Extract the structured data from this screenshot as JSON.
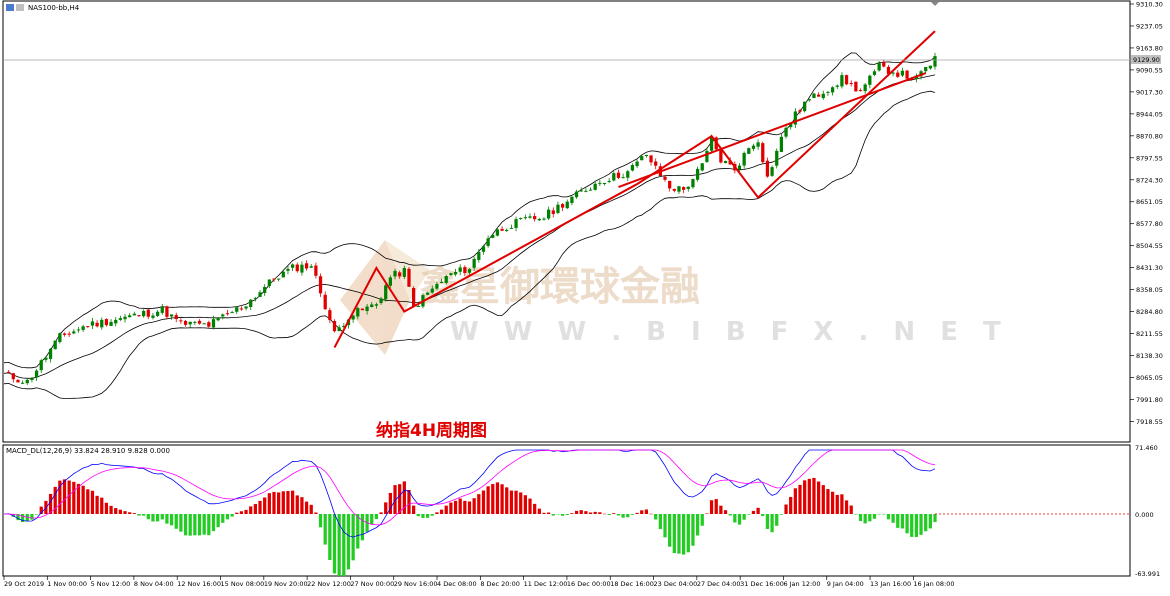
{
  "symbol_label": "NAS100-bb,H4",
  "chart_title": "纳指4H周期图",
  "price_marker": "9129.90",
  "macd_label": "MACD_DL(12,26,9) 33.824 28.910 9.828 0.000",
  "watermark": {
    "cn": "鑫星御環球金融",
    "en": "W W W . B I B F X . N E T"
  },
  "colors": {
    "bull": "#008000",
    "bear": "#e00000",
    "trend": "#e00000",
    "macd_line": "#0000ff",
    "signal_line": "#ff00ff"
  },
  "chart_data": [
    {
      "type": "candlestick",
      "y_axis_ticks": [
        "9310.30",
        "9237.05",
        "9163.80",
        "9090.55",
        "9017.30",
        "8944.05",
        "8870.80",
        "8797.55",
        "8724.30",
        "8651.05",
        "8577.80",
        "8504.55",
        "8431.30",
        "8358.05",
        "8284.80",
        "8211.55",
        "8138.30",
        "8065.05",
        "7991.80",
        "7918.55"
      ],
      "ylim": [
        7900,
        9310.3
      ],
      "x_ticks": [
        "29 Oct 2019",
        "1 Nov 00:00",
        "5 Nov 12:00",
        "8 Nov 04:00",
        "12 Nov 16:00",
        "15 Nov 08:00",
        "19 Nov 20:00",
        "22 Nov 12:00",
        "27 Nov 00:00",
        "29 Nov 16:00",
        "4 Dec 08:00",
        "8 Dec 20:00",
        "11 Dec 12:00",
        "16 Dec 00:00",
        "18 Dec 16:00",
        "23 Dec 04:00",
        "27 Dec 04:00",
        "31 Dec 16:00",
        "6 Jan 12:00",
        "9 Jan 04:00",
        "13 Jan 16:00",
        "16 Jan 08:00"
      ],
      "close_path": [
        [
          0,
          8075
        ],
        [
          5,
          8050
        ],
        [
          12,
          8200
        ],
        [
          18,
          8240
        ],
        [
          26,
          8265
        ],
        [
          34,
          8290
        ],
        [
          38,
          8245
        ],
        [
          44,
          8240
        ],
        [
          52,
          8310
        ],
        [
          58,
          8395
        ],
        [
          62,
          8430
        ],
        [
          66,
          8440
        ],
        [
          69,
          8305
        ],
        [
          71,
          8210
        ],
        [
          74,
          8270
        ],
        [
          80,
          8310
        ],
        [
          83,
          8400
        ],
        [
          86,
          8420
        ],
        [
          88,
          8300
        ],
        [
          92,
          8360
        ],
        [
          96,
          8410
        ],
        [
          100,
          8430
        ],
        [
          104,
          8535
        ],
        [
          108,
          8570
        ],
        [
          112,
          8590
        ],
        [
          116,
          8600
        ],
        [
          120,
          8645
        ],
        [
          128,
          8720
        ],
        [
          134,
          8750
        ],
        [
          138,
          8810
        ],
        [
          140,
          8760
        ],
        [
          143,
          8700
        ],
        [
          146,
          8690
        ],
        [
          150,
          8770
        ],
        [
          152,
          8860
        ],
        [
          154,
          8790
        ],
        [
          157,
          8760
        ],
        [
          160,
          8830
        ],
        [
          162,
          8860
        ],
        [
          164,
          8730
        ],
        [
          166,
          8820
        ],
        [
          168,
          8900
        ],
        [
          172,
          8980
        ],
        [
          176,
          9020
        ],
        [
          180,
          9060
        ],
        [
          184,
          9020
        ],
        [
          188,
          9100
        ],
        [
          192,
          9080
        ],
        [
          196,
          9060
        ],
        [
          199,
          9110
        ],
        [
          200,
          9130
        ]
      ],
      "trend_lines": [
        [
          [
            71,
            8165
          ],
          [
            80,
            8430
          ],
          [
            86,
            8285
          ],
          [
            136,
            8710
          ],
          [
            152,
            8870
          ],
          [
            162,
            8665
          ],
          [
            200,
            9220
          ]
        ],
        [
          [
            132,
            8700
          ],
          [
            198,
            9080
          ]
        ]
      ]
    },
    {
      "type": "macd",
      "series": [
        {
          "name": "MACD_DL(12,26,9)",
          "value": 33.824
        },
        {
          "value": 28.91
        },
        {
          "value": 9.828
        }
      ],
      "y_axis_ticks": [
        "71.460",
        "0.000",
        "-63.991"
      ],
      "ylim": [
        -63.991,
        71.46
      ]
    }
  ]
}
